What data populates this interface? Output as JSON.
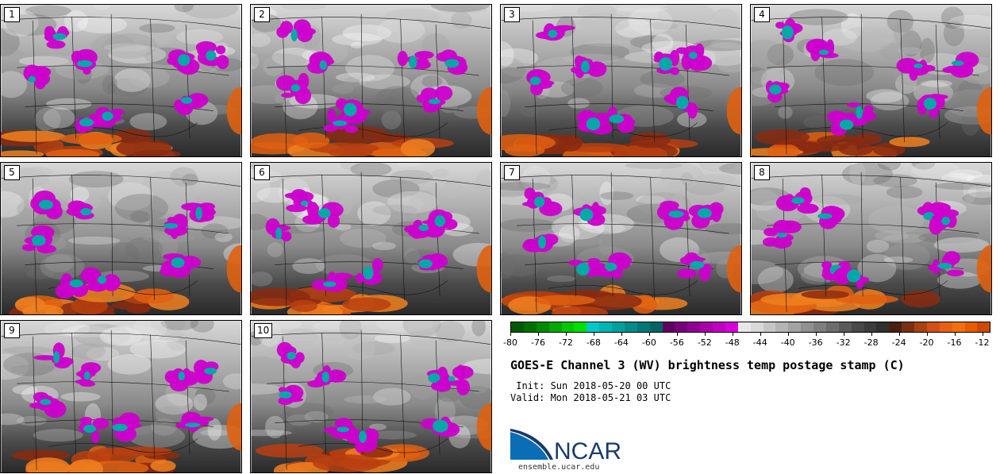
{
  "panels": [
    {
      "label": "1"
    },
    {
      "label": "2"
    },
    {
      "label": "3"
    },
    {
      "label": "4"
    },
    {
      "label": "5"
    },
    {
      "label": "6"
    },
    {
      "label": "7"
    },
    {
      "label": "8"
    },
    {
      "label": "9"
    },
    {
      "label": "10"
    }
  ],
  "colorbar": {
    "ticks": [
      "-80",
      "-76",
      "-72",
      "-68",
      "-64",
      "-60",
      "-56",
      "-52",
      "-48",
      "-44",
      "-40",
      "-36",
      "-32",
      "-28",
      "-24",
      "-20",
      "-16",
      "-12"
    ],
    "colors": [
      "#005a00",
      "#007000",
      "#008a00",
      "#00a800",
      "#00c800",
      "#00e000",
      "#00c8c8",
      "#00b4b4",
      "#00a0a0",
      "#008c8c",
      "#007878",
      "#006464",
      "#600060",
      "#780078",
      "#900090",
      "#a800a8",
      "#c000c0",
      "#d800d8",
      "#e8e8e8",
      "#d8d8d8",
      "#c6c6c6",
      "#b4b4b4",
      "#a2a2a2",
      "#909090",
      "#7e7e7e",
      "#6c6c6c",
      "#5a5a5a",
      "#484848",
      "#3c3c3c",
      "#303030",
      "#4a2010",
      "#7a3010",
      "#a84010",
      "#d05018",
      "#e86010",
      "#f07010",
      "#e85a00",
      "#d04800"
    ]
  },
  "title": "GOES-E Channel 3 (WV) brightness temp postage stamp (C)",
  "init": " Init: Sun 2018-05-20 00 UTC",
  "valid": "Valid: Mon 2018-05-21 03 UTC",
  "logo": {
    "text": "NCAR",
    "url": "ensemble.ucar.edu"
  },
  "colors": {
    "magenta": "#cc00cc",
    "teal": "#00a8a8",
    "orange": "#e06010"
  }
}
